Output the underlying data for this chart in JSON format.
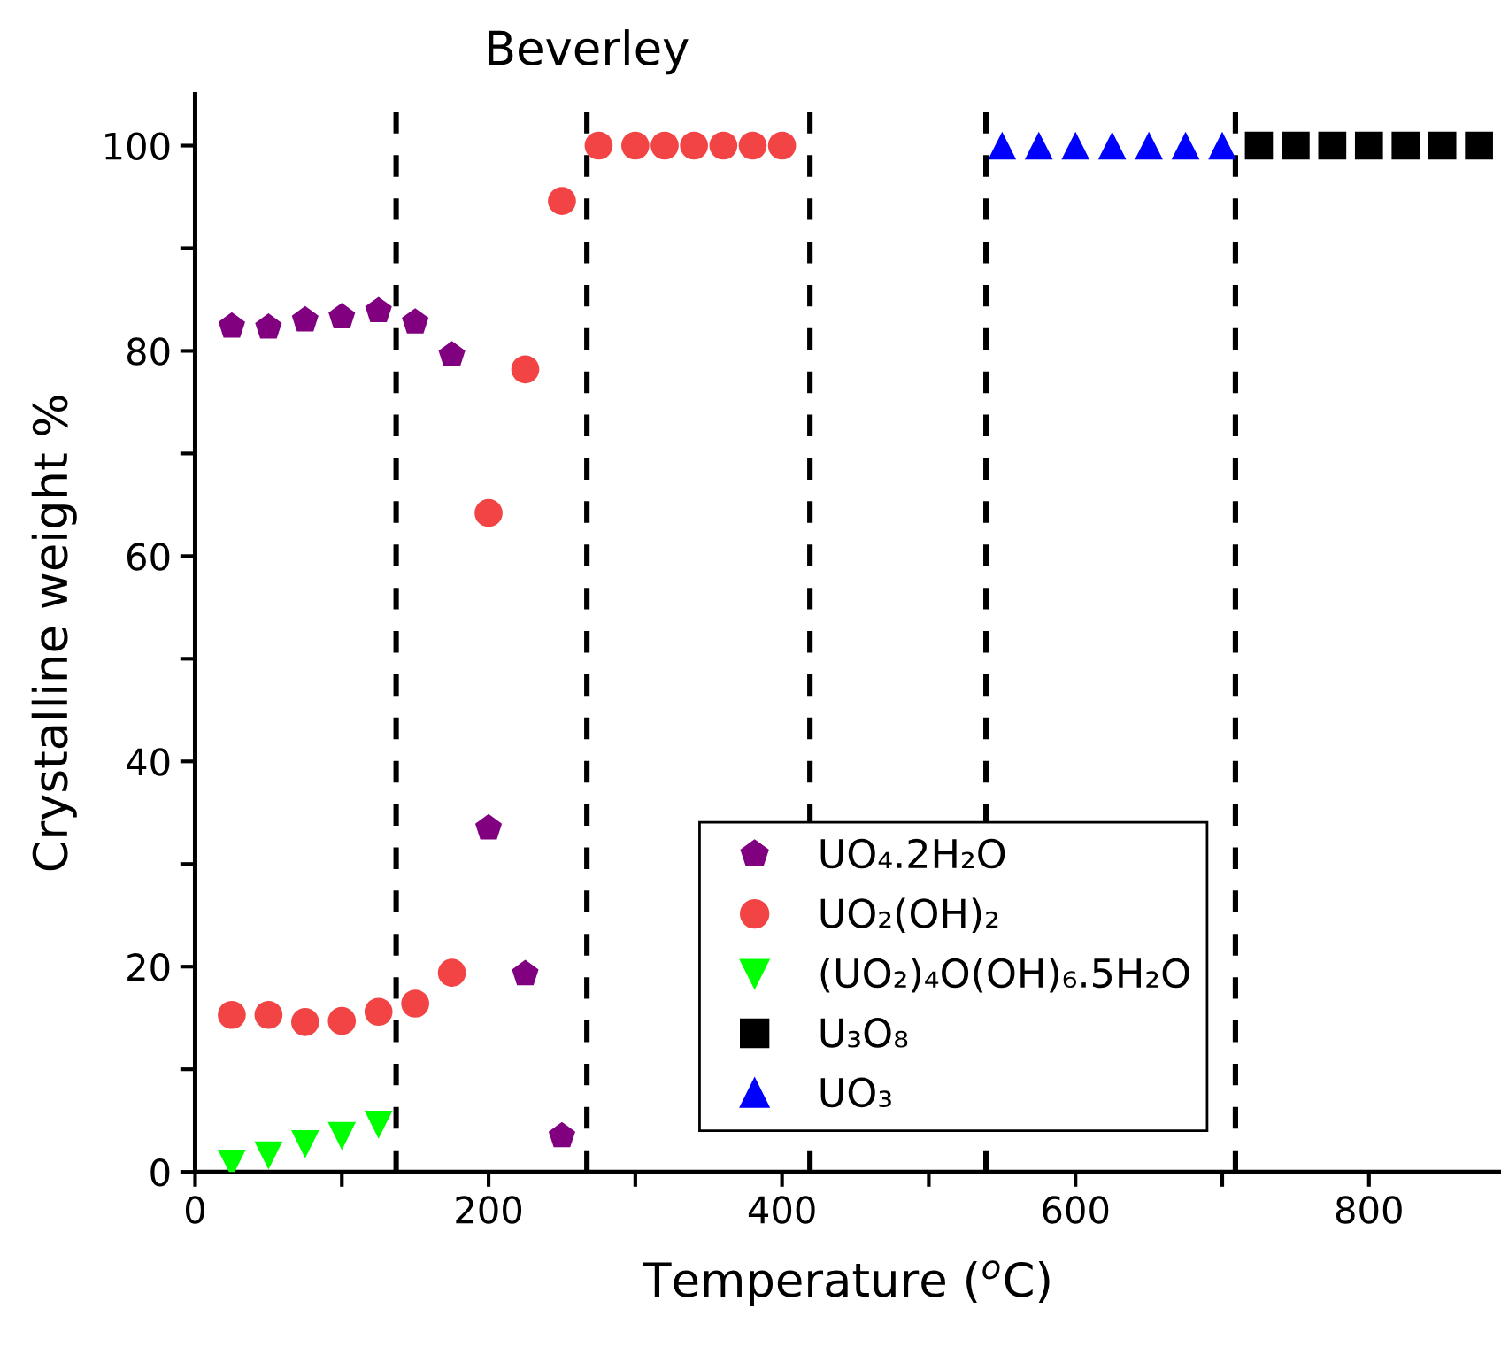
{
  "chart_data": {
    "type": "scatter",
    "title": "Beverley",
    "xlabel": "Temperature ($^{o}$C)",
    "ylabel": "Crystalline weight %",
    "xlim": [
      0,
      890
    ],
    "xticks": [
      0,
      {
        "value": 100,
        "label": null
      },
      200,
      {
        "value": 300,
        "label": null
      },
      400,
      {
        "value": 500,
        "label": null
      },
      600,
      {
        "value": 700,
        "label": null
      },
      800
    ],
    "ylim": [
      0,
      105
    ],
    "yticks": [
      0,
      {
        "value": 10,
        "label": null
      },
      20,
      {
        "value": 30,
        "label": null
      },
      40,
      {
        "value": 50,
        "label": null
      },
      60,
      {
        "value": 70,
        "label": null
      },
      80,
      {
        "value": 90,
        "label": null
      },
      100
    ],
    "grid": false,
    "legend": "bottom right",
    "series": [
      {
        "name": "UO₄.2H₂O",
        "color": "#800080",
        "x": [
          25,
          50,
          75,
          100,
          125,
          150,
          175,
          200,
          225,
          250
        ],
        "values": [
          82.4,
          82.3,
          83.0,
          83.3,
          83.9,
          82.8,
          79.6,
          33.5,
          19.3,
          3.5
        ]
      },
      {
        "name": "UO₂(OH)₂",
        "color": "#f24444",
        "marker": "circle",
        "x": [
          25,
          50,
          75,
          100,
          125,
          150,
          175,
          200,
          225,
          250,
          275,
          300,
          320,
          340,
          360,
          380,
          400
        ],
        "values": [
          15.3,
          15.3,
          14.6,
          14.7,
          15.6,
          16.4,
          19.4,
          64.2,
          78.2,
          94.6,
          100,
          100,
          100,
          100,
          100,
          100,
          100
        ]
      },
      {
        "name": "(UO₂)₄O(OH)₆.5H₂O",
        "color": "#00ff00",
        "marker": "triangle_down",
        "x": [
          25,
          50,
          75,
          100,
          125
        ],
        "values": [
          0.8,
          1.6,
          2.7,
          3.5,
          4.6
        ]
      },
      {
        "name": "U₃O₈",
        "color": "#000000",
        "marker": "square",
        "x": [
          725,
          750,
          775,
          800,
          825,
          850,
          875
        ],
        "values": [
          100,
          100,
          100,
          100,
          100,
          100,
          100
        ]
      },
      {
        "name": "UO₃",
        "color": "#0000ff",
        "marker": "triangle",
        "x": [
          550,
          575,
          600,
          625,
          650,
          675,
          700
        ],
        "values": [
          100,
          100,
          100,
          100,
          100,
          100,
          100
        ]
      }
    ],
    "ref_lines": [
      {
        "axis": "x",
        "value": 137,
        "color": "#000000",
        "line_style": "dashed"
      },
      {
        "axis": "x",
        "value": 267,
        "color": "#000000",
        "line_style": "dashed"
      },
      {
        "axis": "x",
        "value": 419,
        "color": "#000000",
        "line_style": "dashed"
      },
      {
        "axis": "x",
        "value": 539,
        "color": "#000000",
        "line_style": "dashed"
      },
      {
        "axis": "x",
        "value": 709,
        "color": "#000000",
        "line_style": "dashed"
      }
    ]
  }
}
